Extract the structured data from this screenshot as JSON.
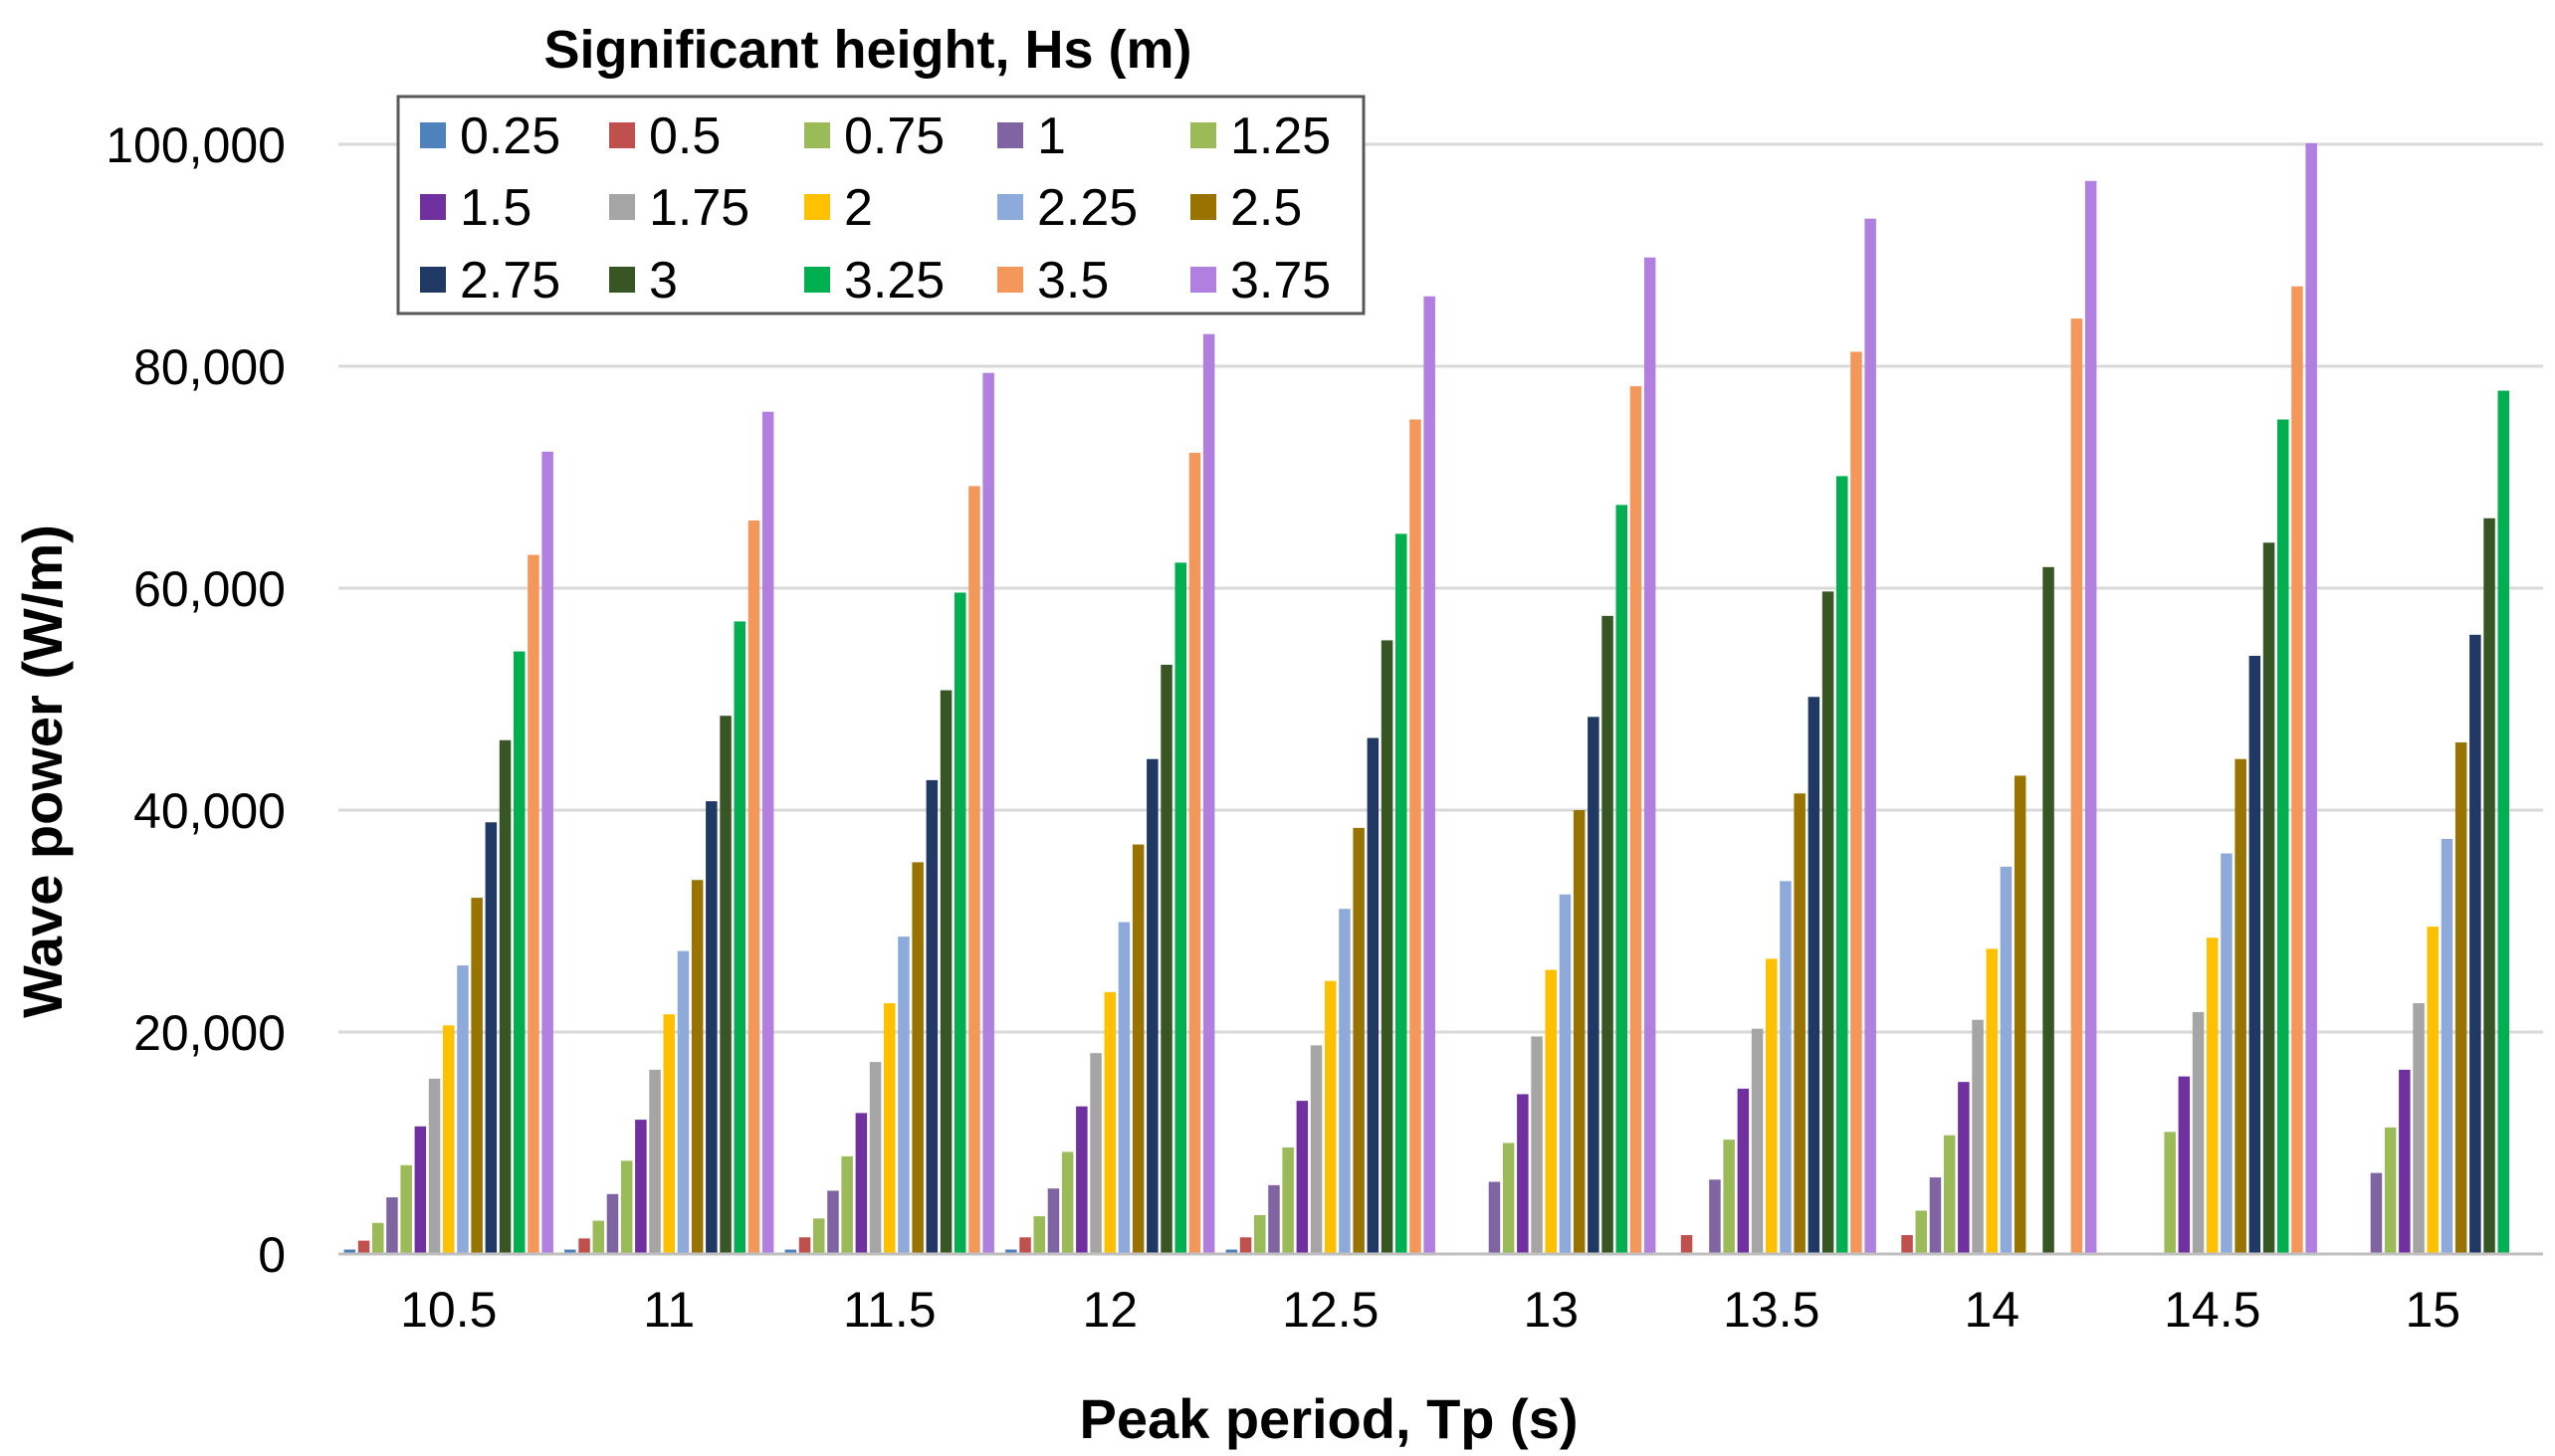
{
  "chart_data": {
    "type": "bar",
    "title": "",
    "xlabel": "Peak period, Tp (s)",
    "ylabel": "Wave power (W/m)",
    "ylim": [
      0,
      100000
    ],
    "yticks": [
      0,
      20000,
      40000,
      60000,
      80000,
      100000
    ],
    "ytick_labels": [
      "0",
      "20,000",
      "40,000",
      "60,000",
      "80,000",
      "100,000"
    ],
    "grid": "horizontal",
    "legend_title": "Significant height, Hs (m)",
    "legend_position": "top-left",
    "categories": [
      "10.5",
      "11",
      "11.5",
      "12",
      "12.5",
      "13",
      "13.5",
      "14",
      "14.5",
      "15"
    ],
    "series": [
      {
        "name": "0.25",
        "color": "#4f81bd",
        "values": [
          400,
          400,
          400,
          400,
          400,
          null,
          null,
          null,
          null,
          null
        ]
      },
      {
        "name": "0.5",
        "color": "#c0504d",
        "values": [
          1200,
          1400,
          1500,
          1500,
          1500,
          null,
          1700,
          1700,
          null,
          null
        ]
      },
      {
        "name": "0.75",
        "color": "#9bbb59",
        "values": [
          2800,
          3000,
          3200,
          3400,
          3500,
          null,
          null,
          3900,
          null,
          null
        ]
      },
      {
        "name": "1",
        "color": "#8064a2",
        "values": [
          5100,
          5400,
          5700,
          5900,
          6200,
          6500,
          6700,
          6900,
          null,
          7300
        ]
      },
      {
        "name": "1.25",
        "color": "#9bbb59",
        "values": [
          8000,
          8400,
          8800,
          9200,
          9600,
          10000,
          10300,
          10700,
          11000,
          11400
        ]
      },
      {
        "name": "1.5",
        "color": "#7030a0",
        "values": [
          11500,
          12100,
          12700,
          13300,
          13800,
          14400,
          14900,
          15500,
          16000,
          16600
        ]
      },
      {
        "name": "1.75",
        "color": "#a5a5a5",
        "values": [
          15800,
          16600,
          17300,
          18100,
          18800,
          19600,
          20300,
          21100,
          21800,
          22600
        ]
      },
      {
        "name": "2",
        "color": "#ffc000",
        "values": [
          20600,
          21600,
          22600,
          23600,
          24600,
          25600,
          26600,
          27500,
          28500,
          29500
        ]
      },
      {
        "name": "2.25",
        "color": "#8eaadb",
        "values": [
          26000,
          27300,
          28600,
          29900,
          31100,
          32400,
          33600,
          34900,
          36100,
          37400
        ]
      },
      {
        "name": "2.5",
        "color": "#997300",
        "values": [
          32100,
          33700,
          35300,
          36900,
          38400,
          40000,
          41500,
          43100,
          44600,
          46100
        ]
      },
      {
        "name": "2.75",
        "color": "#1f3864",
        "values": [
          38900,
          40800,
          42700,
          44600,
          46500,
          48400,
          50200,
          null,
          53900,
          55800
        ]
      },
      {
        "name": "3",
        "color": "#375623",
        "values": [
          46300,
          48500,
          50800,
          53100,
          55300,
          57500,
          59700,
          61900,
          64100,
          66300
        ]
      },
      {
        "name": "3.25",
        "color": "#00b050",
        "values": [
          54300,
          57000,
          59600,
          62300,
          64900,
          67500,
          70100,
          null,
          75200,
          77800
        ]
      },
      {
        "name": "3.5",
        "color": "#f4975a",
        "values": [
          63000,
          66100,
          69200,
          72200,
          75200,
          78200,
          81300,
          84300,
          87200,
          null
        ]
      },
      {
        "name": "3.75",
        "color": "#b07fe0",
        "values": [
          72300,
          75900,
          79400,
          82900,
          86300,
          89800,
          93300,
          96700,
          100100,
          null
        ]
      }
    ]
  }
}
